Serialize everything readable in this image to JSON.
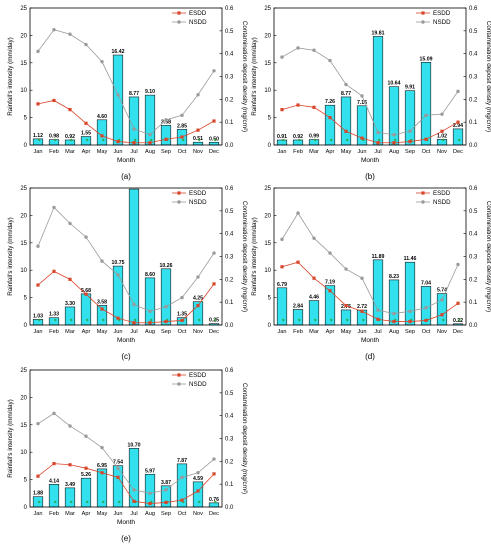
{
  "colors": {
    "bar_fill": "#33e0ee",
    "bar_stroke": "#1a1a1a",
    "esdd": "#d9452b",
    "nsdd": "#9a9a9a",
    "band": "#f6b7b7",
    "green_dot": "#2ca02c"
  },
  "chart_data": [
    {
      "panel": "(a)",
      "type": "bar+line",
      "categories": [
        "Jan",
        "Feb",
        "Mar",
        "Apr",
        "May",
        "Jun",
        "Jul",
        "Aug",
        "Sep",
        "Oct",
        "Nov",
        "Dec"
      ],
      "xlabel": "Month",
      "ylabel": "Rainfall's intensity (mm/day)",
      "y2label": "Contamination deposit density (mg/cm²)",
      "ylim": [
        0,
        25
      ],
      "y2lim": [
        0,
        0.6
      ],
      "yticks": [
        "0",
        "5",
        "10",
        "15",
        "20",
        "25"
      ],
      "y2ticks": [
        "0.0",
        "0.1",
        "0.2",
        "0.3",
        "0.4",
        "0.5",
        "0.6"
      ],
      "bar_values": [
        1.12,
        0.98,
        0.92,
        1.55,
        4.6,
        16.42,
        8.77,
        9.1,
        3.58,
        2.85,
        0.51,
        0.5
      ],
      "bar_labels": [
        "1.12",
        "0.98",
        "0.92",
        "1.55",
        "4.60",
        "16.42",
        "8.77",
        "9.10",
        "3.58",
        "2.85",
        "0.51",
        "0.50"
      ],
      "legend": [
        "ESDD",
        "NSDD"
      ],
      "series": [
        {
          "name": "ESDD",
          "values": [
            0.18,
            0.195,
            0.155,
            0.095,
            0.04,
            0.015,
            0.01,
            0.01,
            0.025,
            0.035,
            0.065,
            0.105
          ]
        },
        {
          "name": "NSDD",
          "values": [
            0.41,
            0.505,
            0.485,
            0.44,
            0.365,
            0.22,
            0.07,
            0.045,
            0.11,
            0.13,
            0.22,
            0.325
          ]
        }
      ]
    },
    {
      "panel": "(b)",
      "type": "bar+line",
      "categories": [
        "Jan",
        "Feb",
        "Mar",
        "Apr",
        "May",
        "Jun",
        "Jul",
        "Aug",
        "Sep",
        "Oct",
        "Nov",
        "Dec"
      ],
      "xlabel": "Month",
      "ylabel": "Rainfall's intensity (mm/day)",
      "y2label": "Contamination deposit density (mg/cm²)",
      "ylim": [
        0,
        25
      ],
      "y2lim": [
        0,
        0.6
      ],
      "yticks": [
        "0",
        "5",
        "10",
        "15",
        "20",
        "25"
      ],
      "y2ticks": [
        "0.0",
        "0.1",
        "0.2",
        "0.3",
        "0.4",
        "0.5",
        "0.6"
      ],
      "bar_values": [
        0.91,
        0.92,
        0.99,
        7.26,
        8.77,
        7.16,
        19.81,
        10.64,
        9.91,
        15.09,
        1.02,
        2.94
      ],
      "bar_labels": [
        "0.91",
        "0.92",
        "0.99",
        "7.26",
        "8.77",
        "7.16",
        "19.81",
        "10.64",
        "9.91",
        "15.09",
        "1.02",
        "2.94"
      ],
      "legend": [
        "ESDD",
        "NSDD"
      ],
      "series": [
        {
          "name": "ESDD",
          "values": [
            0.155,
            0.175,
            0.165,
            0.12,
            0.06,
            0.03,
            0.01,
            0.01,
            0.015,
            0.025,
            0.06,
            0.1
          ]
        },
        {
          "name": "NSDD",
          "values": [
            0.385,
            0.425,
            0.415,
            0.37,
            0.265,
            0.215,
            0.055,
            0.045,
            0.06,
            0.13,
            0.135,
            0.235
          ]
        }
      ]
    },
    {
      "panel": "(c)",
      "type": "bar+line",
      "categories": [
        "Jan",
        "Feb",
        "Mar",
        "Apr",
        "May",
        "Jun",
        "Jul",
        "Aug",
        "Sep",
        "Oct",
        "Nov",
        "Dec"
      ],
      "xlabel": "Month",
      "ylabel": "Rainfall's intensity (mm/day)",
      "y2label": "Contamination deposit density (mg/cm²)",
      "ylim": [
        0,
        25
      ],
      "y2lim": [
        0,
        0.6
      ],
      "yticks": [
        "0",
        "5",
        "10",
        "15",
        "20",
        "25"
      ],
      "y2ticks": [
        "0.0",
        "0.1",
        "0.2",
        "0.3",
        "0.4",
        "0.5",
        "0.6"
      ],
      "bar_values": [
        1.03,
        1.33,
        3.3,
        5.68,
        3.58,
        10.75,
        24.8,
        8.6,
        10.26,
        1.35,
        4.25,
        0.25
      ],
      "bar_labels": [
        "1.03",
        "1.33",
        "3.30",
        "5.68",
        "3.58",
        "10.75",
        "",
        "8.60",
        "10.26",
        "1.35",
        "4.25",
        "0.25"
      ],
      "legend": [
        "ESDD",
        "NSDD"
      ],
      "series": [
        {
          "name": "ESDD",
          "values": [
            0.175,
            0.235,
            0.2,
            0.135,
            0.07,
            0.03,
            0.01,
            0.01,
            0.015,
            0.02,
            0.085,
            0.18
          ]
        },
        {
          "name": "NSDD",
          "values": [
            0.345,
            0.515,
            0.445,
            0.385,
            0.28,
            0.22,
            0.09,
            0.06,
            0.08,
            0.12,
            0.21,
            0.315
          ]
        }
      ]
    },
    {
      "panel": "(d)",
      "type": "bar+line",
      "categories": [
        "Jan",
        "Feb",
        "Mar",
        "Apr",
        "May",
        "Jun",
        "Jul",
        "Aug",
        "Sep",
        "Oct",
        "Nov",
        "Dec"
      ],
      "xlabel": "Month",
      "ylabel": "Rainfall's intensity (mm/day)",
      "y2label": "Contamination deposit density (mg/cm²)",
      "ylim": [
        0,
        25
      ],
      "y2lim": [
        0,
        0.6
      ],
      "yticks": [
        "0",
        "5",
        "10",
        "15",
        "20",
        "25"
      ],
      "y2ticks": [
        "0.0",
        "0.1",
        "0.2",
        "0.3",
        "0.4",
        "0.5",
        "0.6"
      ],
      "bar_values": [
        6.79,
        2.84,
        4.46,
        7.19,
        2.75,
        2.72,
        11.89,
        8.23,
        11.46,
        7.04,
        5.74,
        0.22
      ],
      "bar_labels": [
        "6.79",
        "2.84",
        "4.46",
        "7.19",
        "2.75",
        "2.72",
        "11.89",
        "8.23",
        "11.46",
        "7.04",
        "5.74",
        "0.22"
      ],
      "legend": [
        "ESDD",
        "NSDD"
      ],
      "series": [
        {
          "name": "ESDD",
          "values": [
            0.255,
            0.275,
            0.205,
            0.15,
            0.085,
            0.06,
            0.025,
            0.015,
            0.015,
            0.02,
            0.045,
            0.095
          ]
        },
        {
          "name": "NSDD",
          "values": [
            0.375,
            0.49,
            0.38,
            0.315,
            0.245,
            0.205,
            0.065,
            0.05,
            0.06,
            0.075,
            0.11,
            0.265
          ]
        }
      ]
    },
    {
      "panel": "(e)",
      "type": "bar+line",
      "categories": [
        "Jan",
        "Feb",
        "Mar",
        "Apr",
        "May",
        "Jun",
        "Jul",
        "Aug",
        "Sep",
        "Oct",
        "Nov",
        "Dec"
      ],
      "xlabel": "Month",
      "ylabel": "Rainfall's intensity (mm/day)",
      "y2label": "Contamination deposit density (mg/cm²)",
      "ylim": [
        0,
        25
      ],
      "y2lim": [
        0,
        0.6
      ],
      "yticks": [
        "0",
        "5",
        "10",
        "15",
        "20",
        "25"
      ],
      "y2ticks": [
        "0.0",
        "0.1",
        "0.2",
        "0.3",
        "0.4",
        "0.5",
        "0.6"
      ],
      "bar_values": [
        1.88,
        4.14,
        3.49,
        5.26,
        6.95,
        7.54,
        10.7,
        5.97,
        3.87,
        7.87,
        4.59,
        0.76
      ],
      "bar_labels": [
        "1.88",
        "4.14",
        "3.49",
        "5.26",
        "6.95",
        "7.54",
        "10.70",
        "5.97",
        "3.87",
        "7.87",
        "4.59",
        "0.76"
      ],
      "legend": [
        "ESDD",
        "NSDD"
      ],
      "series": [
        {
          "name": "ESDD",
          "values": [
            0.135,
            0.19,
            0.185,
            0.17,
            0.15,
            0.13,
            0.025,
            0.015,
            0.02,
            0.03,
            0.07,
            0.145
          ]
        },
        {
          "name": "NSDD",
          "values": [
            0.365,
            0.41,
            0.355,
            0.31,
            0.26,
            0.17,
            0.075,
            0.06,
            0.075,
            0.13,
            0.15,
            0.21
          ]
        }
      ]
    }
  ]
}
